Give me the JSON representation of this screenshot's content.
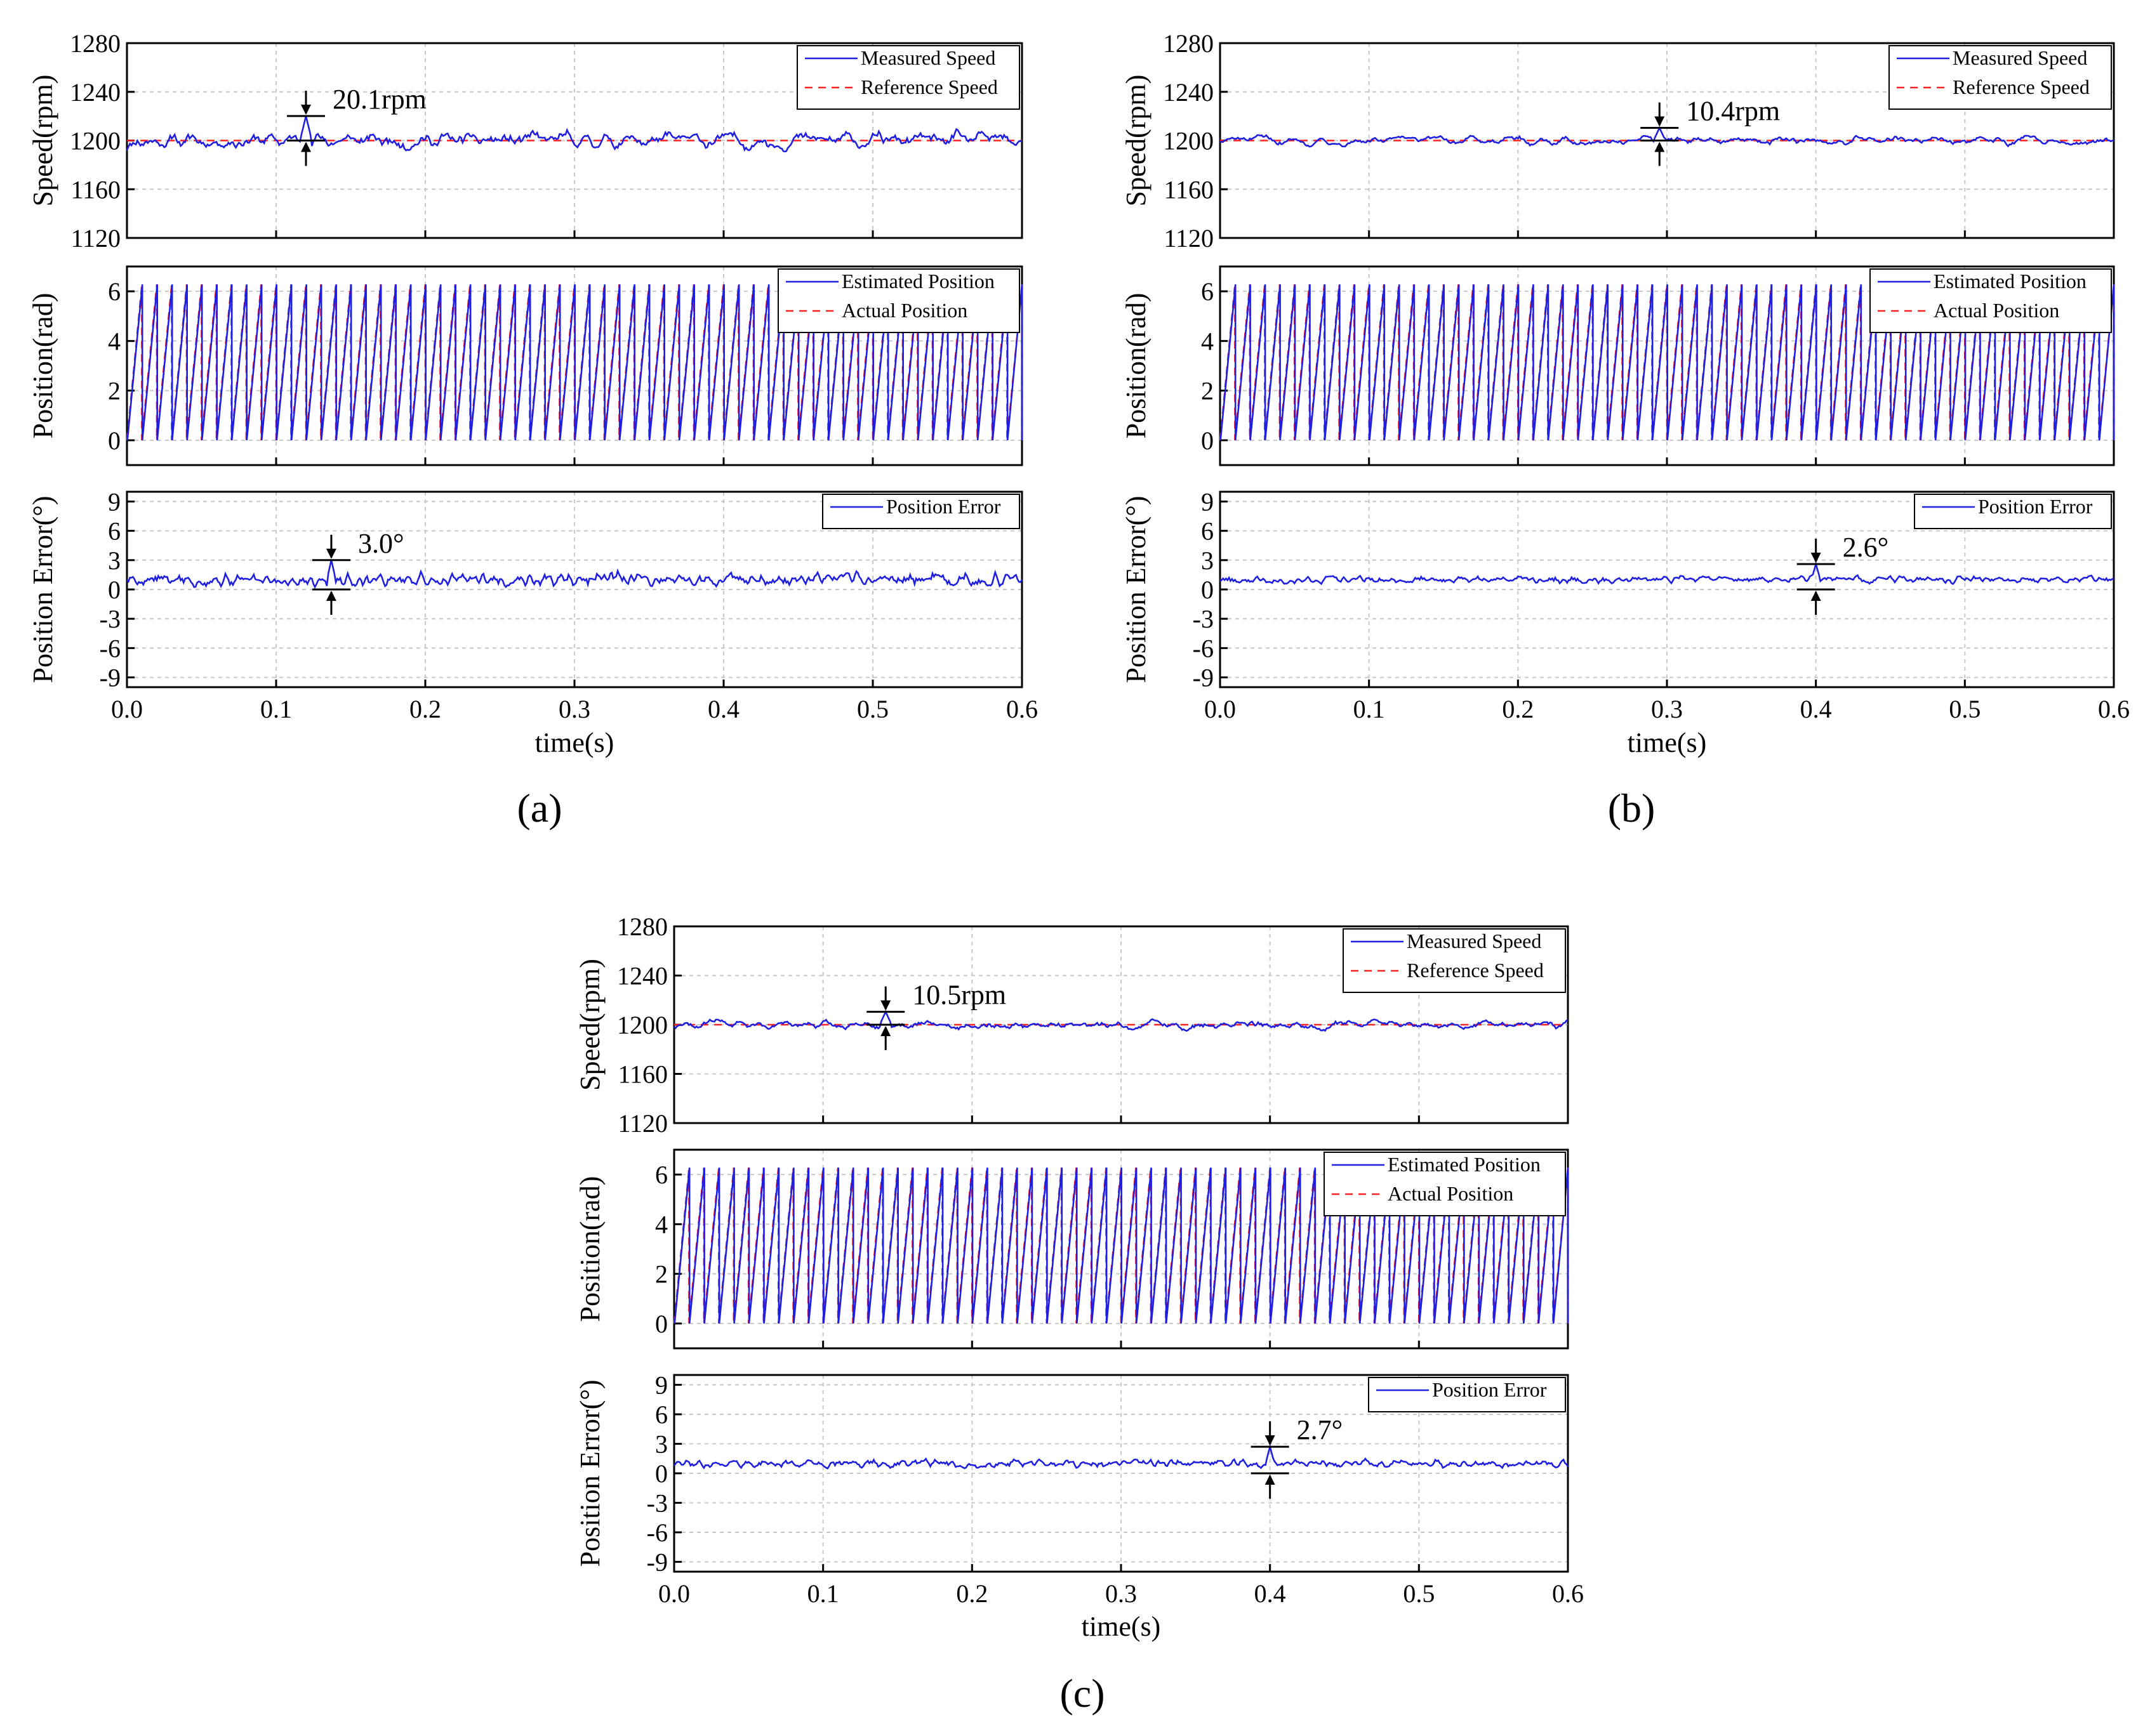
{
  "chart_data": {
    "type": "line",
    "x_label": "time(s)",
    "xlim": [
      0.0,
      0.6
    ],
    "x_ticks": [
      "0.0",
      "0.1",
      "0.2",
      "0.3",
      "0.4",
      "0.5",
      "0.6"
    ],
    "colors": {
      "measured": "#1f1fe0",
      "reference": "#ff2020"
    },
    "subplots": {
      "speed": {
        "ylabel": "Speed(rpm)",
        "ylim": [
          1120,
          1280
        ],
        "yticks": [
          "1280",
          "1240",
          "1200",
          "1160",
          "1120"
        ],
        "legend": [
          "Measured Speed",
          "Reference Speed"
        ],
        "reference_value": 1200
      },
      "position": {
        "ylabel": "Position(rad)",
        "ylim": [
          -1,
          7
        ],
        "yticks": [
          "6",
          "4",
          "2",
          "0"
        ],
        "legend": [
          "Estimated Position",
          "Actual Position"
        ],
        "sawtooth_periods": 60,
        "range": [
          0,
          6.28
        ]
      },
      "error": {
        "ylabel": "Position Error(°)",
        "ylim": [
          -10,
          10
        ],
        "yticks": [
          "9",
          "6",
          "3",
          "0",
          "-3",
          "-6",
          "-9"
        ],
        "legend": [
          "Position Error"
        ]
      }
    },
    "panels": [
      {
        "label": "(a)",
        "speed_annotation": "20.1rpm",
        "speed_annotation_x": 0.12,
        "speed_peak": 1220.1,
        "speed_noise": 10,
        "error_annotation": "3.0°",
        "error_annotation_x": 0.137,
        "error_peak": 3.0,
        "error_mean": 1.0,
        "error_noise": 0.9
      },
      {
        "label": "(b)",
        "speed_annotation": "10.4rpm",
        "speed_annotation_x": 0.295,
        "speed_peak": 1210.4,
        "speed_noise": 5,
        "error_annotation": "2.6°",
        "error_annotation_x": 0.4,
        "error_peak": 2.6,
        "error_mean": 1.0,
        "error_noise": 0.45
      },
      {
        "label": "(c)",
        "speed_annotation": "10.5rpm",
        "speed_annotation_x": 0.142,
        "speed_peak": 1210.5,
        "speed_noise": 5,
        "error_annotation": "2.7°",
        "error_annotation_x": 0.4,
        "error_peak": 2.7,
        "error_mean": 1.0,
        "error_noise": 0.5
      }
    ]
  }
}
